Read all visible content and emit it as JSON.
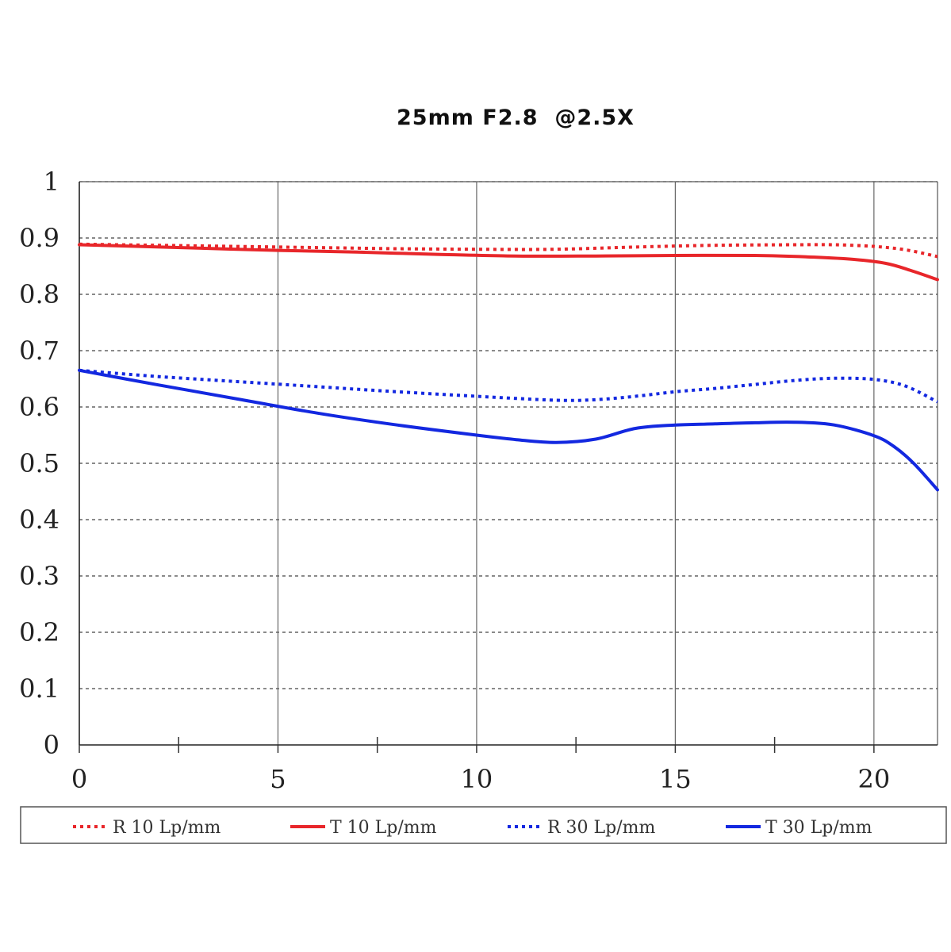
{
  "chart_data": {
    "type": "line",
    "title": "25mm F2.8  @2.5X",
    "xlabel": "",
    "ylabel": "",
    "xlim": [
      0,
      21.6
    ],
    "ylim": [
      0,
      1
    ],
    "x_ticks": [
      0,
      5,
      10,
      15,
      20
    ],
    "x_tick_labels": [
      "0",
      "5",
      "10",
      "15",
      "20"
    ],
    "x_minor_ticks": [
      2.5,
      7.5,
      12.5,
      17.5
    ],
    "y_ticks": [
      0,
      0.1,
      0.2,
      0.3,
      0.4,
      0.5,
      0.6,
      0.7,
      0.8,
      0.9,
      1
    ],
    "y_tick_labels": [
      "0",
      "0.1",
      "0.2",
      "0.3",
      "0.4",
      "0.5",
      "0.6",
      "0.7",
      "0.8",
      "0.9",
      "1"
    ],
    "grid": {
      "vertical": "solid",
      "horizontal": "dashed"
    },
    "legend_position": "bottom",
    "series": [
      {
        "name": "R 10 Lp/mm",
        "color": "#e8262a",
        "style": "dotted",
        "x": [
          0,
          2,
          4,
          6,
          8,
          10,
          12,
          14,
          16,
          18,
          19,
          20,
          20.8,
          21.6
        ],
        "y": [
          0.889,
          0.887,
          0.885,
          0.883,
          0.881,
          0.88,
          0.88,
          0.884,
          0.887,
          0.888,
          0.888,
          0.885,
          0.879,
          0.867
        ]
      },
      {
        "name": "T 10 Lp/mm",
        "color": "#e8262a",
        "style": "solid",
        "x": [
          0,
          1,
          3,
          5,
          7,
          9,
          11,
          13,
          15,
          17,
          18.5,
          19.5,
          20.3,
          20.9,
          21.6
        ],
        "y": [
          0.888,
          0.886,
          0.882,
          0.878,
          0.875,
          0.871,
          0.868,
          0.868,
          0.869,
          0.869,
          0.866,
          0.862,
          0.855,
          0.843,
          0.826
        ]
      },
      {
        "name": "R 30 Lp/mm",
        "color": "#1328e0",
        "style": "dotted",
        "x": [
          0,
          2,
          4,
          6,
          8,
          10,
          12,
          13,
          14,
          15,
          16,
          17,
          18,
          19,
          20,
          20.8,
          21.6
        ],
        "y": [
          0.665,
          0.654,
          0.645,
          0.636,
          0.627,
          0.619,
          0.612,
          0.613,
          0.619,
          0.627,
          0.633,
          0.64,
          0.647,
          0.651,
          0.649,
          0.637,
          0.609
        ]
      },
      {
        "name": "T 30 Lp/mm",
        "color": "#1328e0",
        "style": "solid",
        "x": [
          0,
          2,
          4,
          6,
          8,
          10,
          11,
          12,
          13,
          14,
          15,
          16,
          17,
          18,
          19,
          20,
          20.5,
          21,
          21.6
        ],
        "y": [
          0.665,
          0.639,
          0.614,
          0.589,
          0.568,
          0.55,
          0.542,
          0.537,
          0.543,
          0.562,
          0.568,
          0.57,
          0.572,
          0.573,
          0.568,
          0.549,
          0.53,
          0.5,
          0.453
        ]
      }
    ]
  }
}
